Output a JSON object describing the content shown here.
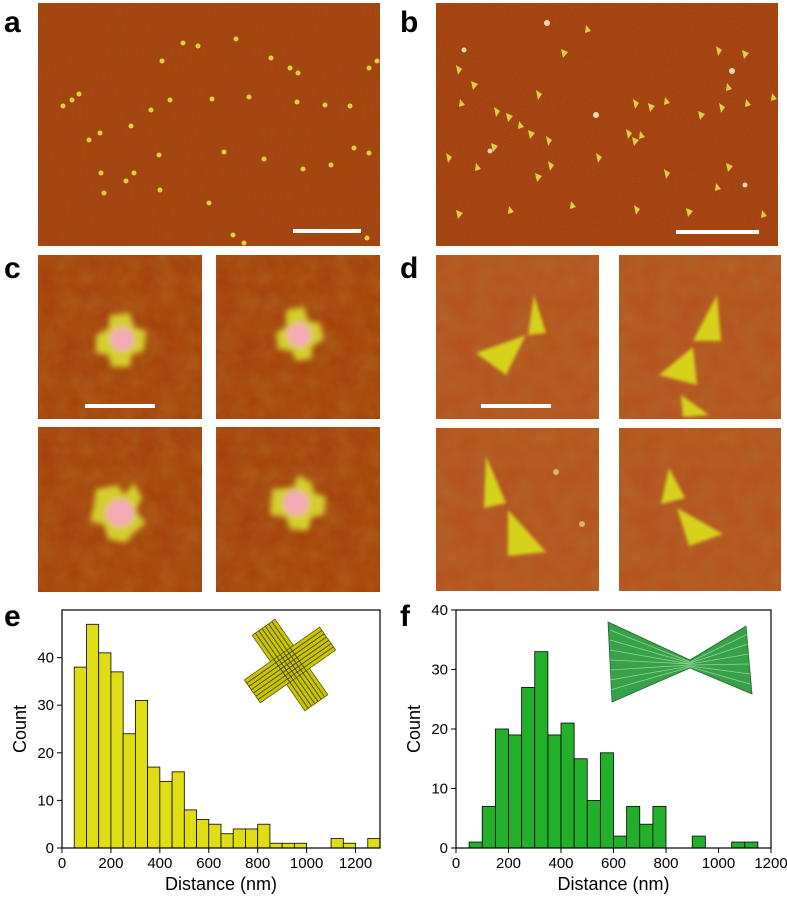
{
  "panel_labels": {
    "a": "a",
    "b": "b",
    "c": "c",
    "d": "d",
    "e": "e",
    "f": "f"
  },
  "colors": {
    "afm_background": "#a43d0a",
    "afm_feature_yellow": "#d7d52a",
    "afm_feature_pink": "#f2a7ad",
    "bar_yellow": "#e1dd14",
    "bar_green": "#22b02a",
    "inset_cross": "#c8c400",
    "inset_bowtie": "#38a049"
  },
  "icons": {
    "e_inset": "cross-origami-icon",
    "f_inset": "bowtie-origami-icon"
  },
  "chart_data": [
    {
      "type": "bar",
      "panel": "e",
      "xlabel": "Distance (nm)",
      "ylabel": "Count",
      "xlim": [
        0,
        1300
      ],
      "ylim": [
        0,
        50
      ],
      "xticks": [
        0,
        200,
        400,
        600,
        800,
        1000,
        1200
      ],
      "yticks": [
        0,
        10,
        20,
        30,
        40
      ],
      "bin_width": 50,
      "bin_starts": [
        50,
        100,
        150,
        200,
        250,
        300,
        350,
        400,
        450,
        500,
        550,
        600,
        650,
        700,
        750,
        800,
        850,
        900,
        950,
        1000,
        1050,
        1100,
        1150,
        1200,
        1250
      ],
      "values": [
        38,
        47,
        41,
        37,
        24,
        31,
        17,
        14,
        16,
        8,
        6,
        5,
        3,
        4,
        4,
        5,
        1,
        1,
        1,
        0,
        0,
        2,
        1,
        0,
        2
      ]
    },
    {
      "type": "bar",
      "panel": "f",
      "xlabel": "Distance (nm)",
      "ylabel": "Count",
      "xlim": [
        0,
        1200
      ],
      "ylim": [
        0,
        40
      ],
      "xticks": [
        0,
        200,
        400,
        600,
        800,
        1000,
        1200
      ],
      "yticks": [
        0,
        10,
        20,
        30,
        40
      ],
      "bin_width": 50,
      "bin_starts": [
        50,
        100,
        150,
        200,
        250,
        300,
        350,
        400,
        450,
        500,
        550,
        600,
        650,
        700,
        750,
        800,
        850,
        900,
        950,
        1000,
        1050,
        1100
      ],
      "values": [
        1,
        7,
        20,
        19,
        27,
        33,
        19,
        21,
        15,
        8,
        16,
        2,
        7,
        4,
        7,
        0,
        0,
        2,
        0,
        0,
        1,
        1
      ]
    }
  ]
}
